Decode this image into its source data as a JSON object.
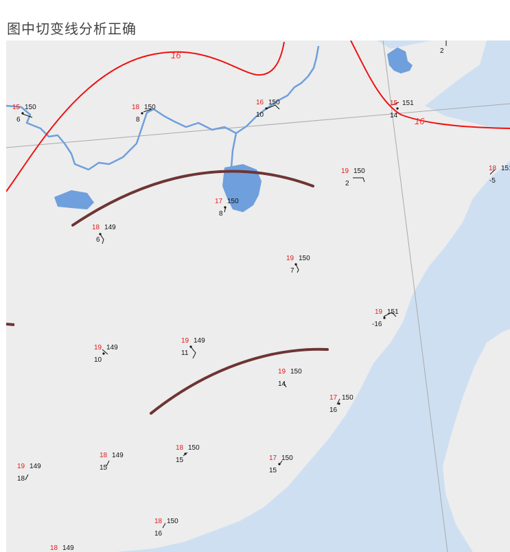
{
  "title": "图中切变线分析正确",
  "colors": {
    "land": "#ededed",
    "sea": "#cfdff2",
    "river": "#6f9fdc",
    "isobar": "#ee1111",
    "shear_line": "#6e3434",
    "grid": "#a9a9a9",
    "temperature_text": "#e3191b",
    "value_text": "#111111"
  },
  "isobar_labels": [
    "16",
    "16"
  ],
  "stations": [
    {
      "temp": "15",
      "pressure": "150",
      "dew": "6"
    },
    {
      "temp": "18",
      "pressure": "150",
      "dew": "8"
    },
    {
      "temp": "16",
      "pressure": "150",
      "dew": "10"
    },
    {
      "temp": "15",
      "pressure": "151",
      "dew": "14"
    },
    {
      "temp": "",
      "pressure": "",
      "dew": "2"
    },
    {
      "temp": "19",
      "pressure": "150",
      "dew": "2"
    },
    {
      "temp": "18",
      "pressure": "151",
      "dew": "-5"
    },
    {
      "temp": "17",
      "pressure": "150",
      "dew": "8"
    },
    {
      "temp": "18",
      "pressure": "149",
      "dew": "6"
    },
    {
      "temp": "19",
      "pressure": "150",
      "dew": "7"
    },
    {
      "temp": "19",
      "pressure": "151",
      "dew": "-16"
    },
    {
      "temp": "19",
      "pressure": "149",
      "dew": "10"
    },
    {
      "temp": "19",
      "pressure": "149",
      "dew": "11"
    },
    {
      "temp": "19",
      "pressure": "150",
      "dew": "14"
    },
    {
      "temp": "17",
      "pressure": "150",
      "dew": "16"
    },
    {
      "temp": "18",
      "pressure": "149",
      "dew": "15"
    },
    {
      "temp": "18",
      "pressure": "150",
      "dew": "15"
    },
    {
      "temp": "17",
      "pressure": "150",
      "dew": "15"
    },
    {
      "temp": "19",
      "pressure": "149",
      "dew": "18"
    },
    {
      "temp": "18",
      "pressure": "150",
      "dew": "16"
    },
    {
      "temp": "18",
      "pressure": "149",
      "dew": ""
    }
  ]
}
